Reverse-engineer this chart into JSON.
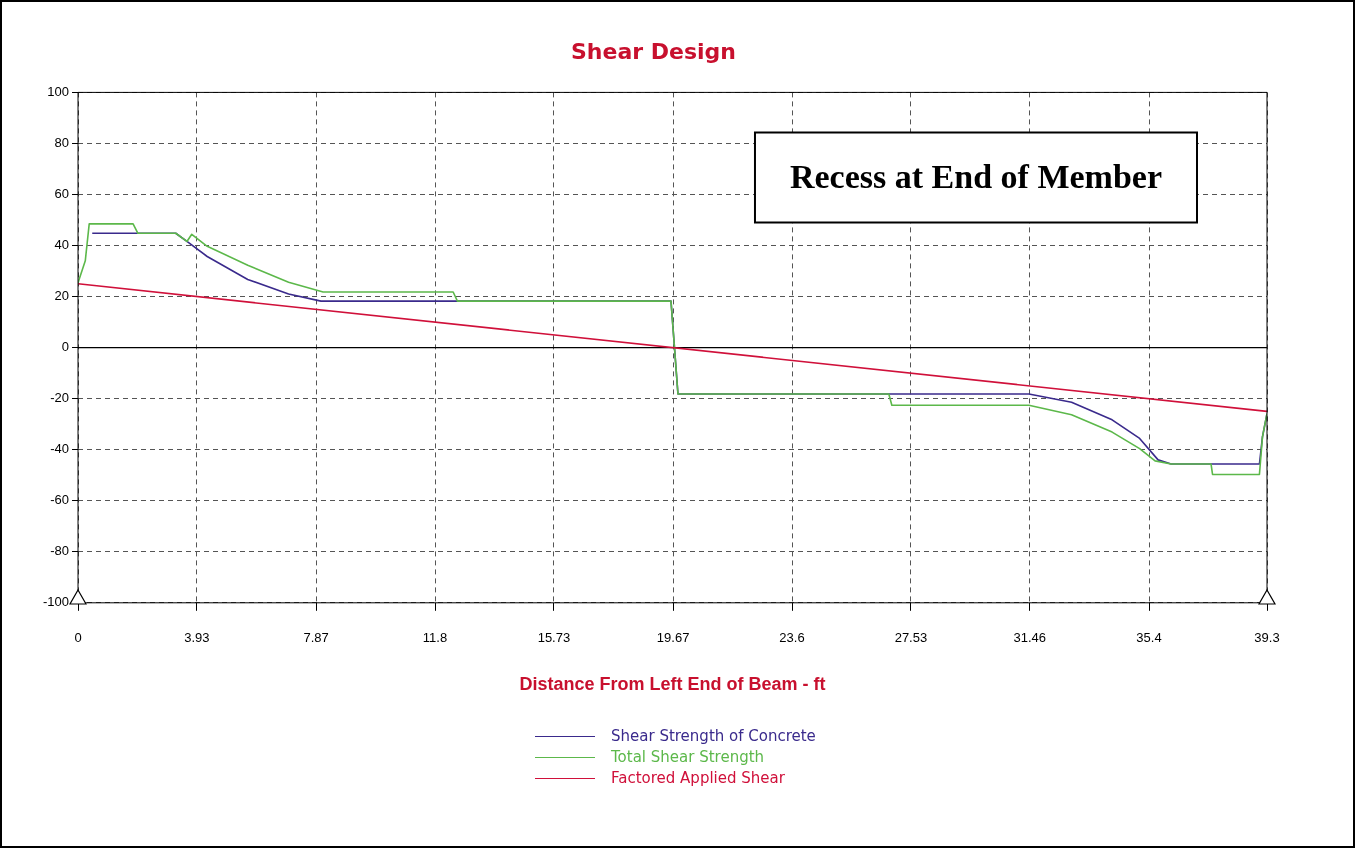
{
  "chart_data": {
    "type": "line",
    "title": "Shear Design",
    "xlabel": "Distance From Left End of Beam - ft",
    "xlim": [
      0,
      39.3
    ],
    "xticks": [
      0,
      3.93,
      7.87,
      11.8,
      15.73,
      19.67,
      23.6,
      27.53,
      31.46,
      35.4,
      39.3
    ],
    "ylim": [
      -100,
      100
    ],
    "yticks": [
      -100,
      -80,
      -60,
      -40,
      -20,
      0,
      20,
      40,
      60,
      80,
      100
    ],
    "grid": true,
    "legend": "bottom",
    "marker": "none",
    "line_style": "solid",
    "annotations": [
      "Recess at End of Member"
    ],
    "series": [
      {
        "name": "Shear Strength of Concrete",
        "color": "#3a2a8c",
        "x": [
          0.47,
          3.23,
          3.6,
          4.27,
          5.61,
          6.96,
          8.03,
          19.6,
          19.83,
          31.43,
          32.84,
          34.18,
          35.09,
          35.7,
          36.13,
          39.05,
          39.15,
          39.3
        ],
        "values": [
          44.8,
          44.8,
          41.6,
          35.7,
          26.7,
          21,
          18.2,
          18.2,
          -18.2,
          -18.2,
          -21.4,
          -28.3,
          -35.6,
          -44,
          -45.6,
          -45.6,
          -35,
          -25.9
        ]
      },
      {
        "name": "Total Shear Strength",
        "color": "#5cb84a",
        "x": [
          0,
          0.24,
          0.37,
          1.82,
          1.98,
          3.23,
          3.6,
          3.76,
          4.27,
          5.61,
          6.96,
          8.1,
          12.4,
          12.54,
          19.6,
          19.83,
          26.8,
          26.9,
          31.43,
          32.84,
          34.18,
          35.09,
          35.6,
          36.13,
          37.45,
          37.5,
          39.05,
          39.15,
          39.3
        ],
        "values": [
          25.4,
          34,
          48.5,
          48.5,
          44.8,
          44.8,
          41.6,
          44.4,
          39.7,
          32.3,
          25.6,
          21.8,
          21.8,
          18.2,
          18.2,
          -18.2,
          -18.2,
          -22.6,
          -22.6,
          -26.3,
          -33.1,
          -39.6,
          -44.4,
          -45.6,
          -45.6,
          -49.7,
          -49.7,
          -35,
          -25.9
        ]
      },
      {
        "name": "Factored Applied Shear",
        "color": "#d0103a",
        "x": [
          0,
          39.3
        ],
        "values": [
          25,
          -25
        ]
      }
    ]
  }
}
